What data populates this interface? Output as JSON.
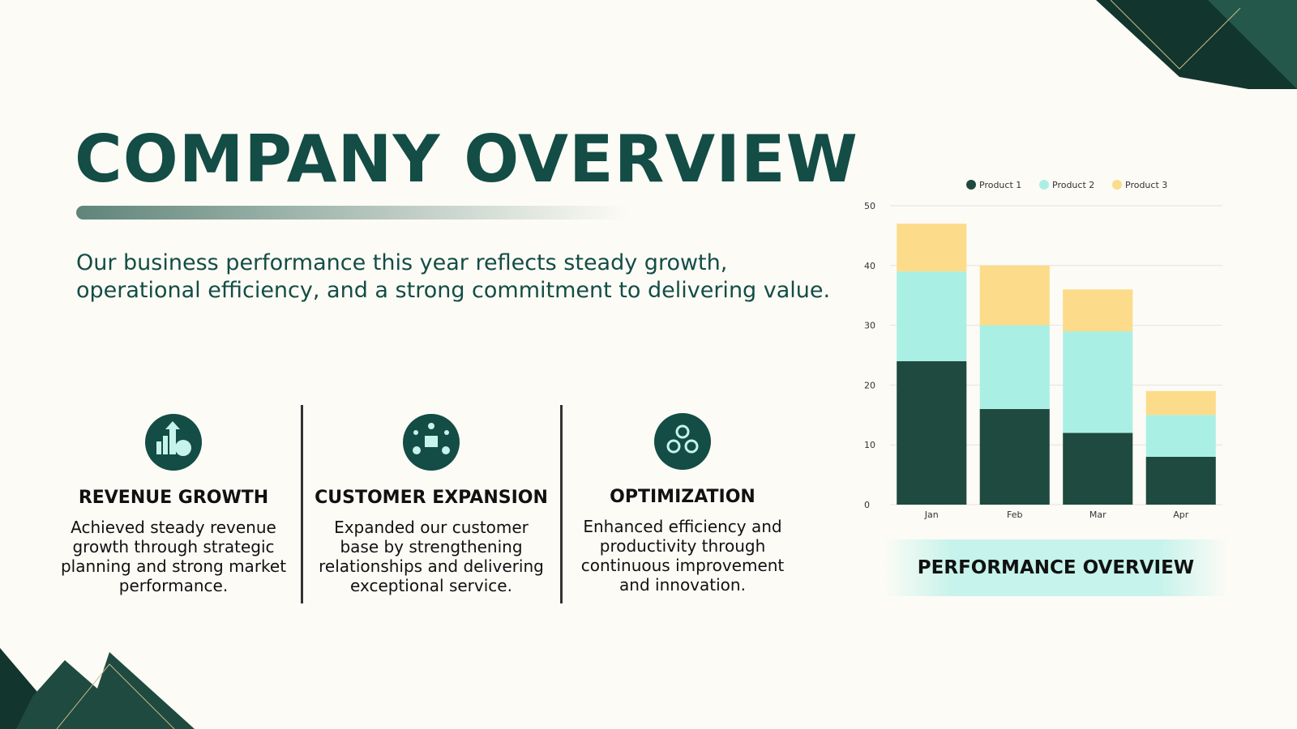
{
  "title": "COMPANY OVERVIEW",
  "intro": "Our business performance this year reflects steady growth, operational efficiency, and a strong commitment to delivering value.",
  "features": [
    {
      "title": "REVENUE GROWTH",
      "text": "Achieved steady revenue growth through strategic planning and strong market performance."
    },
    {
      "title": "CUSTOMER EXPANSION",
      "text": "Expanded our customer base by strengthening relationships and delivering exceptional service."
    },
    {
      "title": "OPTIMIZATION",
      "text": "Enhanced efficiency and productivity through continuous improvement and innovation."
    }
  ],
  "chart_data": {
    "type": "stacked_bar",
    "title": "PERFORMANCE OVERVIEW",
    "categories": [
      "Jan",
      "Feb",
      "Mar",
      "Apr"
    ],
    "series": [
      {
        "name": "Product 1",
        "color": "#1f4a40",
        "values": [
          24,
          16,
          12,
          8
        ]
      },
      {
        "name": "Product 2",
        "color": "#aaefe4",
        "values": [
          15,
          14,
          17,
          7
        ]
      },
      {
        "name": "Product 3",
        "color": "#fcdc8a",
        "values": [
          8,
          10,
          7,
          4
        ]
      }
    ],
    "ylim": [
      0,
      50
    ],
    "yticks": [
      0,
      10,
      20,
      30,
      40,
      50
    ],
    "grid": true,
    "legend": "top"
  }
}
